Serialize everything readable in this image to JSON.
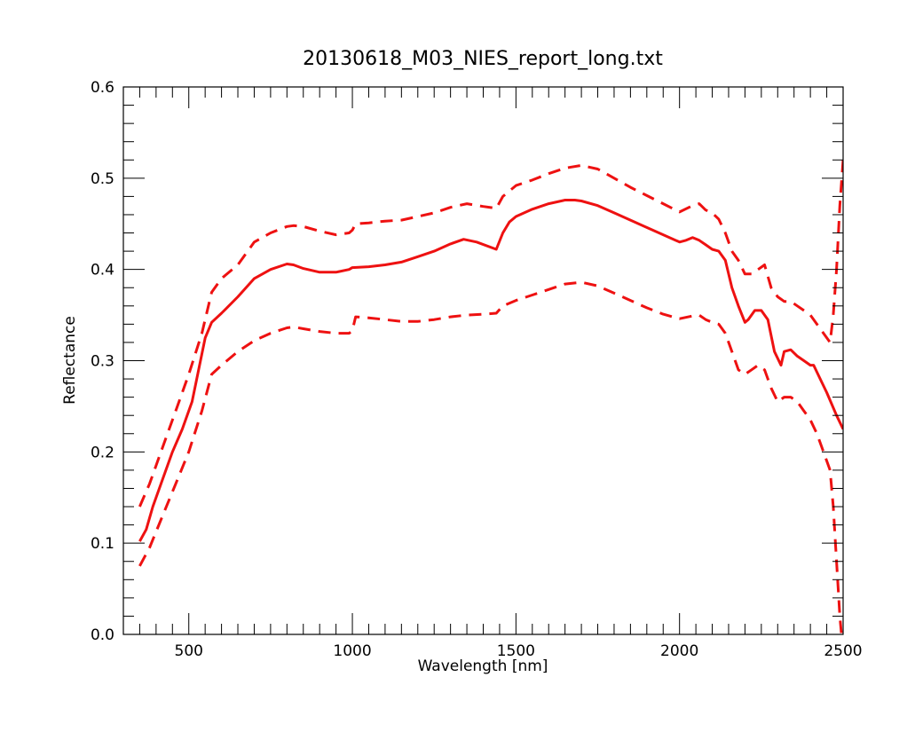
{
  "chart_data": {
    "type": "line",
    "title": "20130618_M03_NIES_report_long.txt",
    "xlabel": "Wavelength [nm]",
    "ylabel": "Reflectance",
    "xlim": [
      300,
      2500
    ],
    "ylim": [
      0.0,
      0.6
    ],
    "x_ticks": [
      500,
      1000,
      1500,
      2000,
      2500
    ],
    "x_tick_labels": [
      "500",
      "1000",
      "1500",
      "2000",
      "2500"
    ],
    "y_ticks": [
      0.0,
      0.1,
      0.2,
      0.3,
      0.4,
      0.5,
      0.6
    ],
    "y_tick_labels": [
      "0.0",
      "0.1",
      "0.2",
      "0.3",
      "0.4",
      "0.5",
      "0.6"
    ],
    "grid": false,
    "line_color": "#ee1111",
    "series": [
      {
        "style": "solid",
        "x": [
          350,
          370,
          390,
          420,
          450,
          480,
          510,
          530,
          550,
          570,
          600,
          650,
          700,
          750,
          800,
          820,
          850,
          900,
          950,
          990,
          1000,
          1050,
          1100,
          1150,
          1200,
          1250,
          1300,
          1340,
          1380,
          1440,
          1460,
          1480,
          1500,
          1550,
          1600,
          1650,
          1680,
          1700,
          1750,
          1800,
          1850,
          1900,
          1950,
          2000,
          2020,
          2040,
          2060,
          2080,
          2100,
          2120,
          2140,
          2160,
          2180,
          2200,
          2210,
          2230,
          2250,
          2270,
          2290,
          2310,
          2320,
          2340,
          2360,
          2380,
          2400,
          2410,
          2430,
          2450,
          2480,
          2500
        ],
        "y": [
          0.102,
          0.115,
          0.14,
          0.17,
          0.2,
          0.225,
          0.255,
          0.29,
          0.325,
          0.342,
          0.352,
          0.37,
          0.39,
          0.4,
          0.406,
          0.405,
          0.401,
          0.397,
          0.397,
          0.4,
          0.402,
          0.403,
          0.405,
          0.408,
          0.414,
          0.42,
          0.428,
          0.433,
          0.43,
          0.422,
          0.44,
          0.452,
          0.458,
          0.466,
          0.472,
          0.476,
          0.476,
          0.475,
          0.47,
          0.462,
          0.454,
          0.446,
          0.438,
          0.43,
          0.432,
          0.435,
          0.432,
          0.427,
          0.422,
          0.42,
          0.41,
          0.38,
          0.36,
          0.342,
          0.345,
          0.355,
          0.355,
          0.345,
          0.31,
          0.295,
          0.31,
          0.312,
          0.305,
          0.3,
          0.295,
          0.295,
          0.28,
          0.265,
          0.24,
          0.225
        ]
      },
      {
        "style": "dashed",
        "x": [
          350,
          380,
          420,
          460,
          500,
          540,
          570,
          600,
          650,
          700,
          750,
          800,
          820,
          850,
          900,
          950,
          990,
          1000,
          1010,
          1050,
          1100,
          1150,
          1200,
          1250,
          1300,
          1350,
          1400,
          1440,
          1460,
          1500,
          1550,
          1600,
          1650,
          1700,
          1750,
          1800,
          1850,
          1900,
          1950,
          2000,
          2040,
          2060,
          2080,
          2100,
          2120,
          2140,
          2160,
          2180,
          2200,
          2220,
          2240,
          2260,
          2280,
          2300,
          2320,
          2340,
          2360,
          2380,
          2400,
          2420,
          2440,
          2460,
          2470,
          2480,
          2490,
          2500
        ],
        "y": [
          0.14,
          0.165,
          0.205,
          0.245,
          0.285,
          0.33,
          0.375,
          0.39,
          0.405,
          0.43,
          0.44,
          0.447,
          0.448,
          0.447,
          0.442,
          0.438,
          0.44,
          0.443,
          0.45,
          0.451,
          0.453,
          0.454,
          0.458,
          0.462,
          0.468,
          0.472,
          0.469,
          0.467,
          0.48,
          0.492,
          0.498,
          0.505,
          0.511,
          0.514,
          0.51,
          0.5,
          0.49,
          0.481,
          0.472,
          0.463,
          0.47,
          0.472,
          0.465,
          0.462,
          0.455,
          0.44,
          0.42,
          0.41,
          0.395,
          0.395,
          0.4,
          0.405,
          0.38,
          0.37,
          0.365,
          0.365,
          0.36,
          0.355,
          0.35,
          0.34,
          0.33,
          0.32,
          0.35,
          0.4,
          0.47,
          0.52
        ]
      },
      {
        "style": "dashed",
        "x": [
          350,
          380,
          420,
          460,
          500,
          540,
          570,
          600,
          650,
          700,
          750,
          800,
          820,
          850,
          900,
          950,
          990,
          1000,
          1010,
          1050,
          1100,
          1150,
          1200,
          1250,
          1300,
          1350,
          1400,
          1440,
          1460,
          1500,
          1550,
          1600,
          1650,
          1700,
          1750,
          1800,
          1850,
          1900,
          1950,
          2000,
          2040,
          2060,
          2080,
          2100,
          2120,
          2140,
          2160,
          2180,
          2200,
          2220,
          2240,
          2260,
          2280,
          2300,
          2320,
          2340,
          2360,
          2380,
          2400,
          2420,
          2440,
          2460,
          2470,
          2480,
          2490,
          2500
        ],
        "y": [
          0.075,
          0.095,
          0.13,
          0.165,
          0.2,
          0.245,
          0.285,
          0.295,
          0.31,
          0.322,
          0.33,
          0.336,
          0.337,
          0.335,
          0.332,
          0.33,
          0.33,
          0.333,
          0.348,
          0.347,
          0.345,
          0.343,
          0.343,
          0.345,
          0.348,
          0.35,
          0.351,
          0.352,
          0.36,
          0.366,
          0.372,
          0.378,
          0.384,
          0.386,
          0.382,
          0.374,
          0.366,
          0.358,
          0.351,
          0.346,
          0.349,
          0.35,
          0.345,
          0.342,
          0.34,
          0.33,
          0.31,
          0.29,
          0.285,
          0.29,
          0.295,
          0.29,
          0.27,
          0.255,
          0.26,
          0.26,
          0.255,
          0.245,
          0.235,
          0.22,
          0.2,
          0.18,
          0.14,
          0.08,
          0.02,
          -0.02
        ]
      }
    ]
  }
}
